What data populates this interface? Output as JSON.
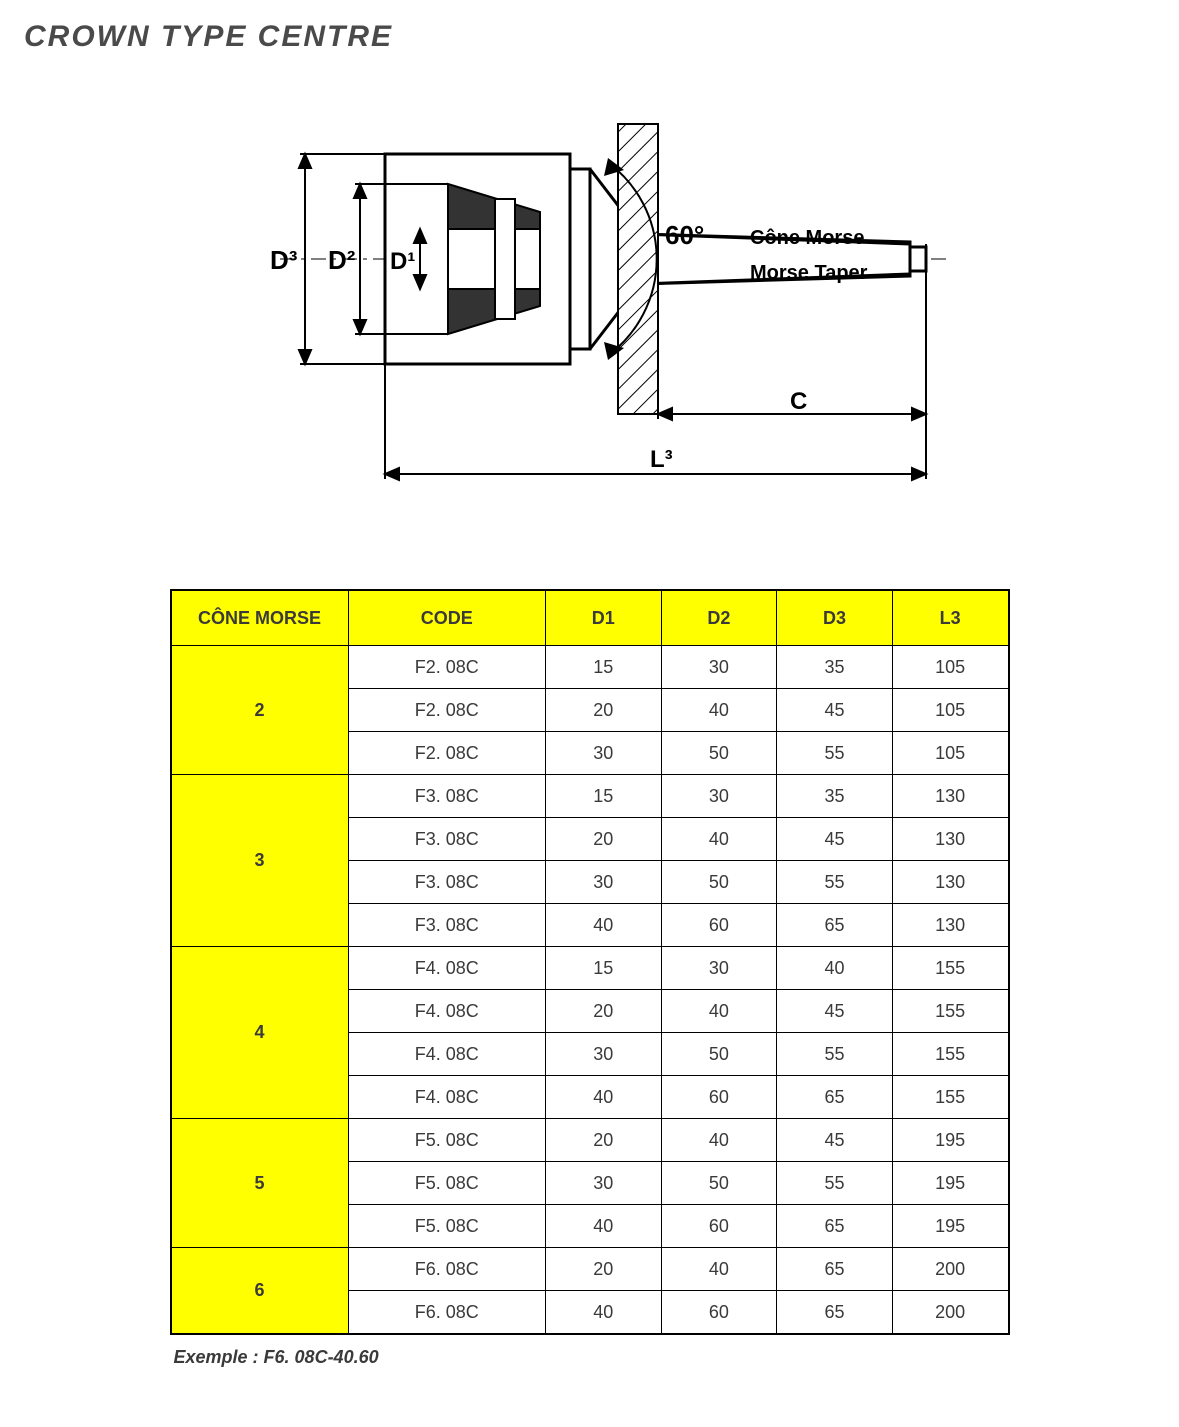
{
  "title": "CROWN TYPE CENTRE",
  "diagram": {
    "labels": {
      "D1": "D¹",
      "D2": "D²",
      "D3": "D³",
      "L3": "L³",
      "C": "C",
      "angle": "60°",
      "cone_fr": "Cône Morse",
      "cone_en": "Morse Taper"
    },
    "colors": {
      "outline": "#000000",
      "centerline": "#000000",
      "fill_dark": "#333333",
      "hatch": "#000000",
      "bg": "#ffffff"
    }
  },
  "table": {
    "header_bg": "#ffff00",
    "morse_bg": "#ffff00",
    "border_color": "#000000",
    "columns": [
      "CÔNE MORSE",
      "CODE",
      "D1",
      "D2",
      "D3",
      "L3"
    ],
    "groups": [
      {
        "morse": "2",
        "rows": [
          {
            "code": "F2. 08C",
            "d1": "15",
            "d2": "30",
            "d3": "35",
            "l3": "105"
          },
          {
            "code": "F2. 08C",
            "d1": "20",
            "d2": "40",
            "d3": "45",
            "l3": "105"
          },
          {
            "code": "F2. 08C",
            "d1": "30",
            "d2": "50",
            "d3": "55",
            "l3": "105"
          }
        ]
      },
      {
        "morse": "3",
        "rows": [
          {
            "code": "F3. 08C",
            "d1": "15",
            "d2": "30",
            "d3": "35",
            "l3": "130"
          },
          {
            "code": "F3. 08C",
            "d1": "20",
            "d2": "40",
            "d3": "45",
            "l3": "130"
          },
          {
            "code": "F3. 08C",
            "d1": "30",
            "d2": "50",
            "d3": "55",
            "l3": "130"
          },
          {
            "code": "F3. 08C",
            "d1": "40",
            "d2": "60",
            "d3": "65",
            "l3": "130"
          }
        ]
      },
      {
        "morse": "4",
        "rows": [
          {
            "code": "F4. 08C",
            "d1": "15",
            "d2": "30",
            "d3": "40",
            "l3": "155"
          },
          {
            "code": "F4. 08C",
            "d1": "20",
            "d2": "40",
            "d3": "45",
            "l3": "155"
          },
          {
            "code": "F4. 08C",
            "d1": "30",
            "d2": "50",
            "d3": "55",
            "l3": "155"
          },
          {
            "code": "F4. 08C",
            "d1": "40",
            "d2": "60",
            "d3": "65",
            "l3": "155"
          }
        ]
      },
      {
        "morse": "5",
        "rows": [
          {
            "code": "F5. 08C",
            "d1": "20",
            "d2": "40",
            "d3": "45",
            "l3": "195"
          },
          {
            "code": "F5. 08C",
            "d1": "30",
            "d2": "50",
            "d3": "55",
            "l3": "195"
          },
          {
            "code": "F5. 08C",
            "d1": "40",
            "d2": "60",
            "d3": "65",
            "l3": "195"
          }
        ]
      },
      {
        "morse": "6",
        "rows": [
          {
            "code": "F6. 08C",
            "d1": "20",
            "d2": "40",
            "d3": "65",
            "l3": "200"
          },
          {
            "code": "F6. 08C",
            "d1": "40",
            "d2": "60",
            "d3": "65",
            "l3": "200"
          }
        ]
      }
    ]
  },
  "example_label": "Exemple : F6. 08C-40.60"
}
